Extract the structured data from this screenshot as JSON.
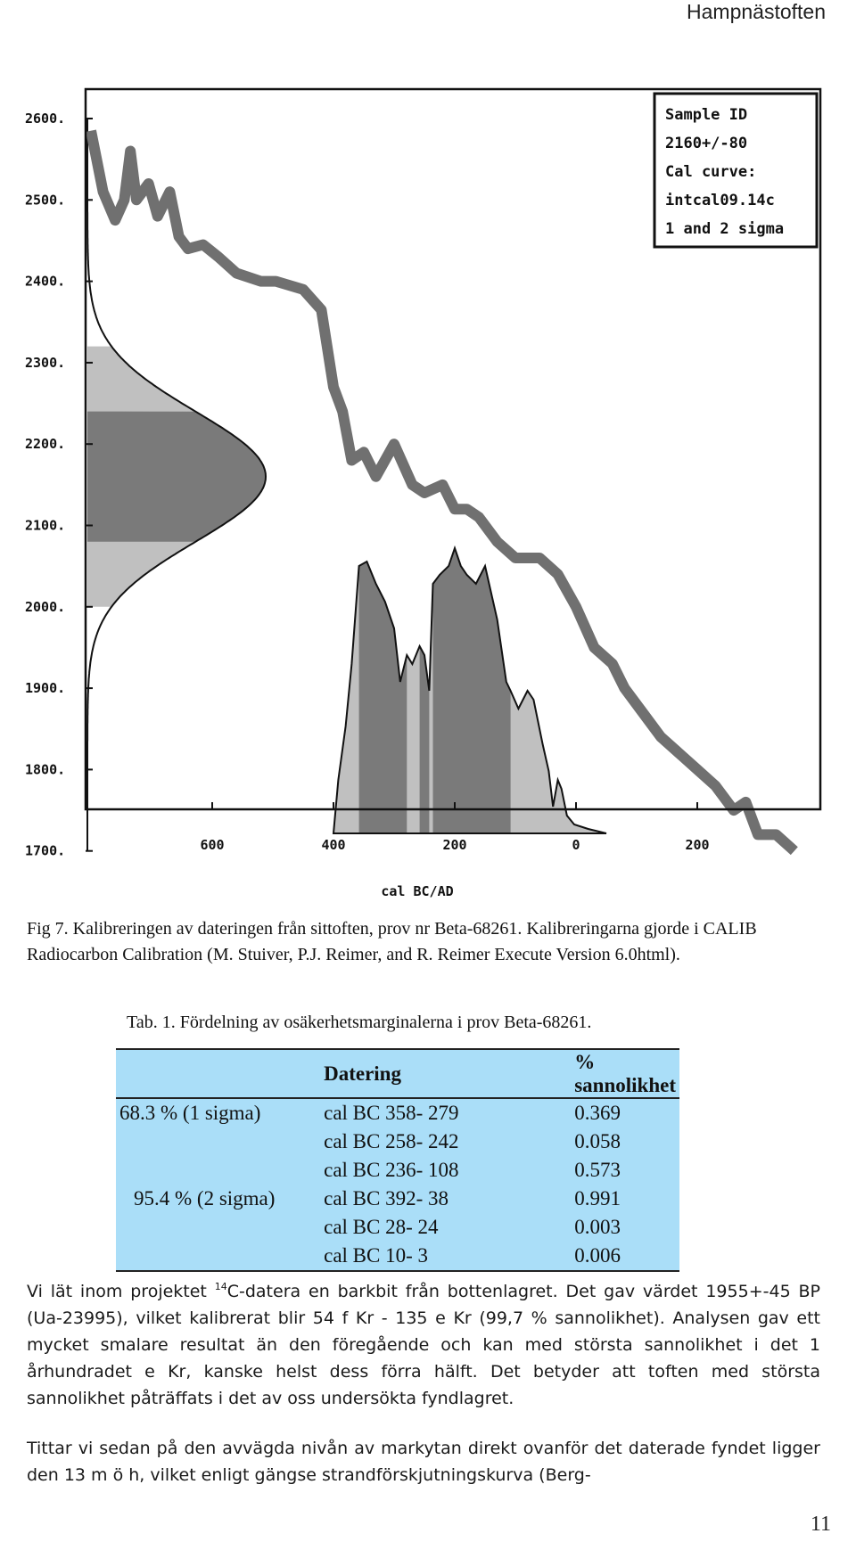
{
  "header": {
    "title": "Hampnästoften"
  },
  "figure": {
    "legend_lines": [
      "Sample ID",
      "2160+/-80",
      "Cal curve:",
      "intcal09.14c",
      "1 and 2 sigma"
    ],
    "xlabel": "cal BC/AD",
    "xticks": [
      {
        "label": "600",
        "v": 600
      },
      {
        "label": "400",
        "v": 400
      },
      {
        "label": "200",
        "v": 200
      },
      {
        "label": "0",
        "v": 0
      },
      {
        "label": "200",
        "v": -200
      }
    ],
    "yticks": [
      {
        "label": "2600.",
        "v": 2600
      },
      {
        "label": "2500.",
        "v": 2500
      },
      {
        "label": "2400.",
        "v": 2400
      },
      {
        "label": "2300.",
        "v": 2300
      },
      {
        "label": "2200.",
        "v": 2200
      },
      {
        "label": "2100.",
        "v": 2100
      },
      {
        "label": "2000.",
        "v": 2000
      },
      {
        "label": "1900.",
        "v": 1900
      },
      {
        "label": "1800.",
        "v": 1800
      },
      {
        "label": "1700.",
        "v": 1700
      }
    ],
    "colors": {
      "curve": "#707070",
      "sigma1": "#7a7a7a",
      "sigma2": "#c0c0c0",
      "frame": "#111111"
    }
  },
  "caption": "Fig 7. Kalibreringen av dateringen från sittoften, prov nr Beta-68261. Kalibreringarna gjorde i CALIB Radiocarbon Calibration (M. Stuiver, P.J. Reimer, and R. Reimer Execute Version 6.0html).",
  "table": {
    "title": "Tab. 1. Fördelning av osäkerhetsmarginalerna i prov Beta-68261.",
    "headers": [
      "",
      "Datering",
      "% sannolikhet"
    ],
    "rows": [
      [
        "68.3 % (1 sigma)",
        "cal BC 358- 279",
        "0.369"
      ],
      [
        "",
        "cal BC 258- 242",
        "0.058"
      ],
      [
        "",
        "cal BC 236- 108",
        "0.573"
      ],
      [
        "95.4 % (2 sigma)",
        "cal BC 392- 38",
        "0.991"
      ],
      [
        "",
        "cal BC 28- 24",
        "0.003"
      ],
      [
        "",
        "cal BC 10- 3",
        "0.006"
      ]
    ]
  },
  "paragraphs": {
    "p1_pre": "Vi lät inom projektet ",
    "p1_sup": "14",
    "p1_post": "C-datera en barkbit från bottenlagret. Det gav värdet 1955+-45 BP (Ua-23995), vilket kalibrerat blir 54 f Kr - 135 e Kr (99,7 % sannolikhet). Analysen gav ett mycket smalare resultat än den föregående och kan med största sannolikhet i det 1 århundradet e Kr, kanske helst dess förra hälft. Det betyder att toften med största sannolikhet påträffats i det av oss undersökta fyndlagret.",
    "p2": "Tittar vi sedan på den avvägda nivån av markytan direkt ovanför det daterade fyndet ligger den 13 m ö h, vilket enligt gängse strandförskjutningskurva (Berg-"
  },
  "page_number": "11"
}
